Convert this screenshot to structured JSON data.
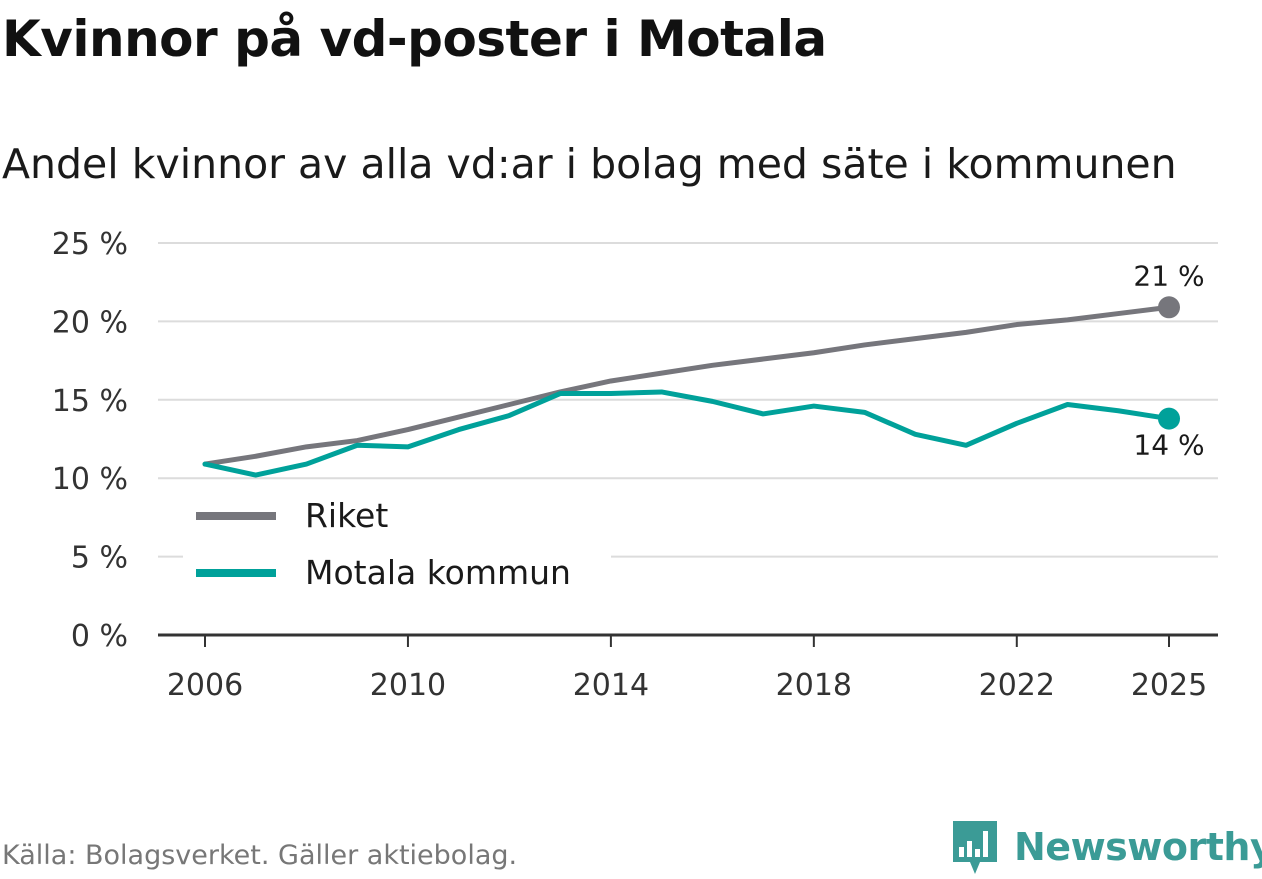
{
  "title": "Kvinnor på vd-poster i Motala",
  "subtitle": "Andel kvinnor av alla vd:ar i bolag med säte i kommunen",
  "source": "Källa: Bolagsverket. Gäller aktiebolag.",
  "brand": "Newsworthy",
  "colors": {
    "riket": "#76767c",
    "motala": "#00a19a",
    "grid": "#dcdcdc",
    "axis": "#333333",
    "brand": "#3b9b96"
  },
  "chart_data": {
    "type": "line",
    "x": [
      2006,
      2007,
      2008,
      2009,
      2010,
      2011,
      2012,
      2013,
      2014,
      2015,
      2016,
      2017,
      2018,
      2019,
      2020,
      2021,
      2022,
      2023,
      2024,
      2025
    ],
    "series": [
      {
        "name": "Riket",
        "values": [
          10.9,
          11.4,
          12.0,
          12.4,
          13.1,
          13.9,
          14.7,
          15.5,
          16.2,
          16.7,
          17.2,
          17.6,
          18.0,
          18.5,
          18.9,
          19.3,
          19.8,
          20.1,
          20.5,
          20.9
        ],
        "end_label": "21 %"
      },
      {
        "name": "Motala kommun",
        "values": [
          10.9,
          10.2,
          10.9,
          12.1,
          12.0,
          13.1,
          14.0,
          15.4,
          15.4,
          15.5,
          14.9,
          14.1,
          14.6,
          14.2,
          12.8,
          12.1,
          13.5,
          14.7,
          14.3,
          13.8
        ],
        "end_label": "14 %"
      }
    ],
    "yticks": [
      0,
      5,
      10,
      15,
      20,
      25
    ],
    "ytick_labels": [
      "0 %",
      "5 %",
      "10 %",
      "15 %",
      "20 %",
      "25 %"
    ],
    "xticks": [
      2006,
      2010,
      2014,
      2018,
      2022,
      2025
    ],
    "xtick_labels": [
      "2006",
      "2010",
      "2014",
      "2018",
      "2022",
      "2025"
    ],
    "ylim": [
      0,
      25
    ],
    "xlim": [
      2006,
      2025
    ],
    "grid": true,
    "legend": "bottom-left"
  }
}
